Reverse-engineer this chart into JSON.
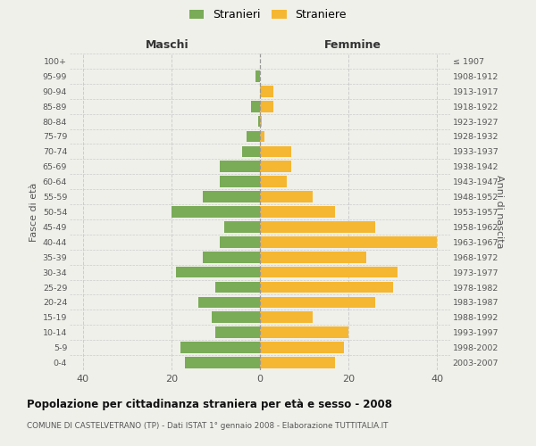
{
  "age_groups": [
    "0-4",
    "5-9",
    "10-14",
    "15-19",
    "20-24",
    "25-29",
    "30-34",
    "35-39",
    "40-44",
    "45-49",
    "50-54",
    "55-59",
    "60-64",
    "65-69",
    "70-74",
    "75-79",
    "80-84",
    "85-89",
    "90-94",
    "95-99",
    "100+"
  ],
  "birth_years": [
    "2003-2007",
    "1998-2002",
    "1993-1997",
    "1988-1992",
    "1983-1987",
    "1978-1982",
    "1973-1977",
    "1968-1972",
    "1963-1967",
    "1958-1962",
    "1953-1957",
    "1948-1952",
    "1943-1947",
    "1938-1942",
    "1933-1937",
    "1928-1932",
    "1923-1927",
    "1918-1922",
    "1913-1917",
    "1908-1912",
    "≤ 1907"
  ],
  "maschi": [
    17,
    18,
    10,
    11,
    14,
    10,
    19,
    13,
    9,
    8,
    20,
    13,
    9,
    9,
    4,
    3,
    0.5,
    2,
    0,
    1,
    0
  ],
  "femmine": [
    17,
    19,
    20,
    12,
    26,
    30,
    31,
    24,
    40,
    26,
    17,
    12,
    6,
    7,
    7,
    1,
    0.5,
    3,
    3,
    0,
    0
  ],
  "color_maschi": "#7aab57",
  "color_femmine": "#f5b731",
  "color_center_line": "#999999",
  "xlim": [
    -43,
    43
  ],
  "xticks": [
    -40,
    -20,
    0,
    20,
    40
  ],
  "xticklabels": [
    "40",
    "20",
    "0",
    "20",
    "40"
  ],
  "title": "Popolazione per cittadinanza straniera per età e sesso - 2008",
  "subtitle": "COMUNE DI CASTELVETRANO (TP) - Dati ISTAT 1° gennaio 2008 - Elaborazione TUTTITALIA.IT",
  "ylabel_left": "Fasce di età",
  "ylabel_right": "Anni di nascita",
  "label_maschi_header": "Maschi",
  "label_femmine_header": "Femmine",
  "legend_stranieri": "Stranieri",
  "legend_straniere": "Straniere",
  "background_color": "#f0f0eb",
  "grid_color": "#cccccc"
}
